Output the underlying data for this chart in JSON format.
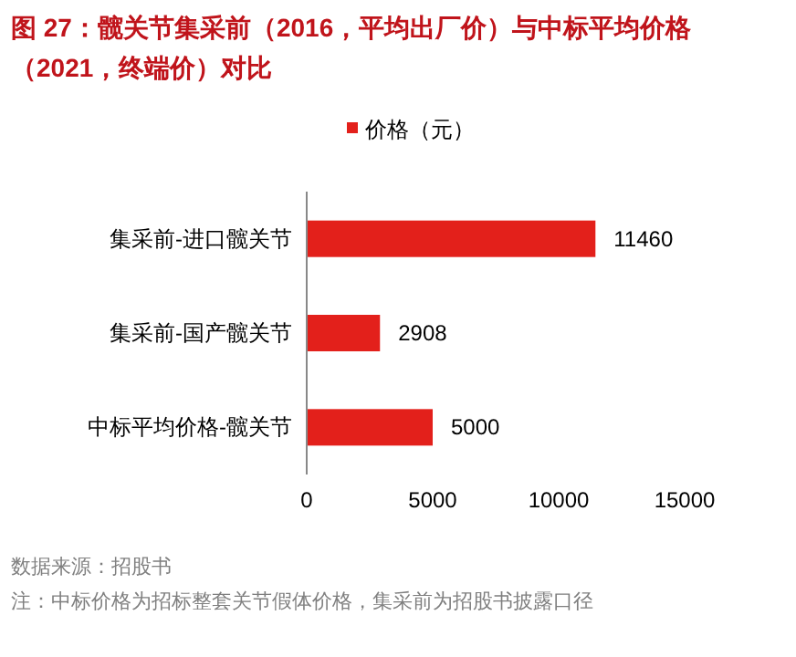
{
  "chart_data": {
    "type": "bar",
    "orientation": "horizontal",
    "title": "图 27：髋关节集采前（2016，平均出厂价）与中标平均价格（2021，终端价）对比",
    "categories": [
      "集采前-进口髋关节",
      "集采前-国产髋关节",
      "中标平均价格-髋关节"
    ],
    "series": [
      {
        "name": "价格（元）",
        "color": "#e3201b",
        "values": [
          11460,
          2908,
          5000
        ]
      }
    ],
    "xlim": [
      0,
      15000
    ],
    "xticks": [
      0,
      5000,
      10000,
      15000
    ],
    "data_labels": true,
    "legend": "top",
    "annotations": [
      "数据来源：招股书",
      "注：中标价格为招标整套关节假体价格，集采前为招股书披露口径"
    ]
  }
}
